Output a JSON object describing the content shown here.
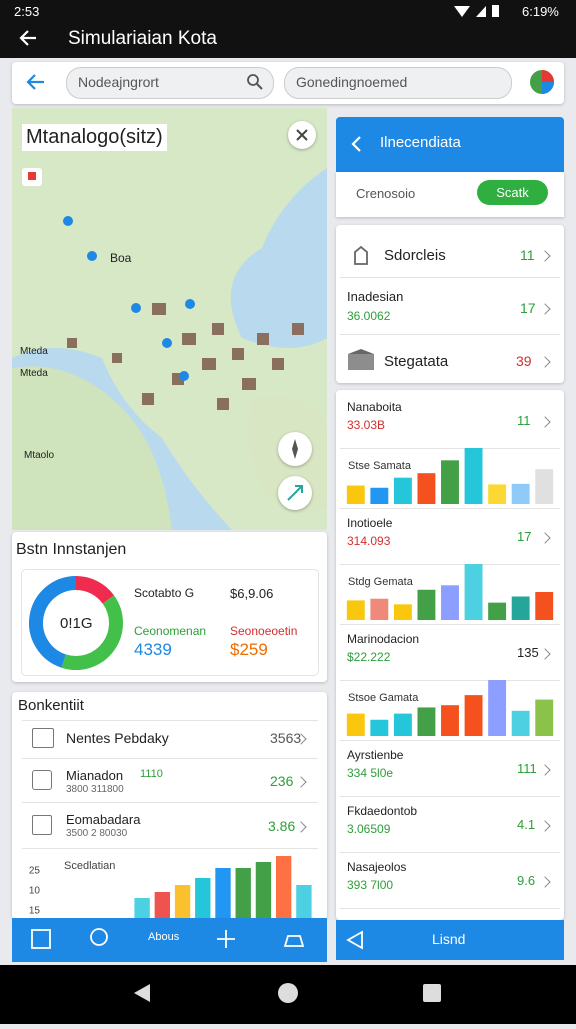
{
  "status_bar": {
    "time": "2:53",
    "battery": "6:19%"
  },
  "app_bar": {
    "title": "Simulariaian Kota"
  },
  "search": {
    "field_1": "Nodeajngrort",
    "field_2": "Gonedingnoemed"
  },
  "map": {
    "title": "Mtanalogo(sitz)",
    "labels": [
      "Boa",
      "Mteda",
      "Mteda",
      "Mtaolo"
    ]
  },
  "stats": {
    "title": "Bstn Innstanjen",
    "donut_center": "0!1G",
    "donut": {
      "values": [
        15,
        40,
        45
      ],
      "colors": [
        "#ef2b4f",
        "#43c04a",
        "#1e88e5"
      ]
    },
    "items": [
      {
        "label": "Scotabto G",
        "value": "$6,9.06"
      },
      {
        "label": "Ceonomenan",
        "value": "4339"
      },
      {
        "label": "Seonoeoetin",
        "value": "$259"
      }
    ]
  },
  "list": {
    "title": "Bonkentiit",
    "rows": [
      {
        "title": "Nentes Pebdaky",
        "value": "3563"
      },
      {
        "title": "Mianadon",
        "tag": "1110",
        "sub": "3800 311800",
        "value": "236"
      },
      {
        "title": "Eomabadara",
        "sub": "3500 2 80030",
        "value": "3.86"
      }
    ],
    "chart": {
      "title": "Scedlatian",
      "axis_labels": [
        "25",
        "10",
        "15"
      ],
      "values": [
        20,
        26,
        33,
        40,
        50,
        50,
        56,
        62,
        33
      ],
      "colors": [
        "#4dd0e1",
        "#ef5350",
        "#fbc02d",
        "#26c6da",
        "#2196f3",
        "#43a047",
        "#43a047",
        "#ff7043",
        "#4dd0e1"
      ]
    }
  },
  "bottom_nav": {
    "label": "Abous"
  },
  "panel": {
    "title": "Ilnecendiata",
    "search": "Crenosoio",
    "button": "Scatk",
    "top_rows": [
      {
        "title": "Sdorcleis",
        "value": "11"
      },
      {
        "title": "Inadesian",
        "sub": "36.0062",
        "value": "17"
      },
      {
        "title": "Stegatata",
        "value": "39"
      }
    ],
    "rows": [
      {
        "title": "Nanaboita",
        "sub": "33.03B",
        "value": "11"
      },
      {
        "chart": "Stse Samata",
        "values": [
          33,
          29,
          47,
          55,
          78,
          100,
          35,
          36,
          62
        ],
        "colors": [
          "#f9c80e",
          "#2196f3",
          "#26c6da",
          "#f4511e",
          "#43a047",
          "#26c6da",
          "#fdd835",
          "#90caf9",
          "#e0e0e0"
        ]
      },
      {
        "title": "Inotioele",
        "sub": "314.093",
        "value": "17"
      },
      {
        "chart": "Stdg Gemata",
        "values": [
          35,
          38,
          28,
          54,
          62,
          100,
          31,
          42,
          50
        ],
        "colors": [
          "#f9c80e",
          "#ef8a7a",
          "#f9c80e",
          "#43a047",
          "#8c9eff",
          "#4dd0e1",
          "#43a047",
          "#26a69a",
          "#f4511e"
        ]
      },
      {
        "title": "Marinodacion",
        "sub": "$22.222",
        "value": "135"
      },
      {
        "chart": "Stsoe Gamata",
        "values": [
          40,
          29,
          40,
          51,
          55,
          73,
          100,
          45,
          65
        ],
        "colors": [
          "#f9c80e",
          "#26c6da",
          "#26c6da",
          "#43a047",
          "#f4511e",
          "#f4511e",
          "#8c9eff",
          "#4dd0e1",
          "#8bc34a"
        ]
      },
      {
        "title": "Ayrstienbe",
        "sub": "334 5l0e",
        "value": "111"
      },
      {
        "title": "Fkdaedontob",
        "sub": "3.06509",
        "value": "4.1"
      },
      {
        "title": "Nasajeolos",
        "sub": "393 7l00",
        "value": "9.6"
      }
    ],
    "footer_button": "Lisnd"
  }
}
